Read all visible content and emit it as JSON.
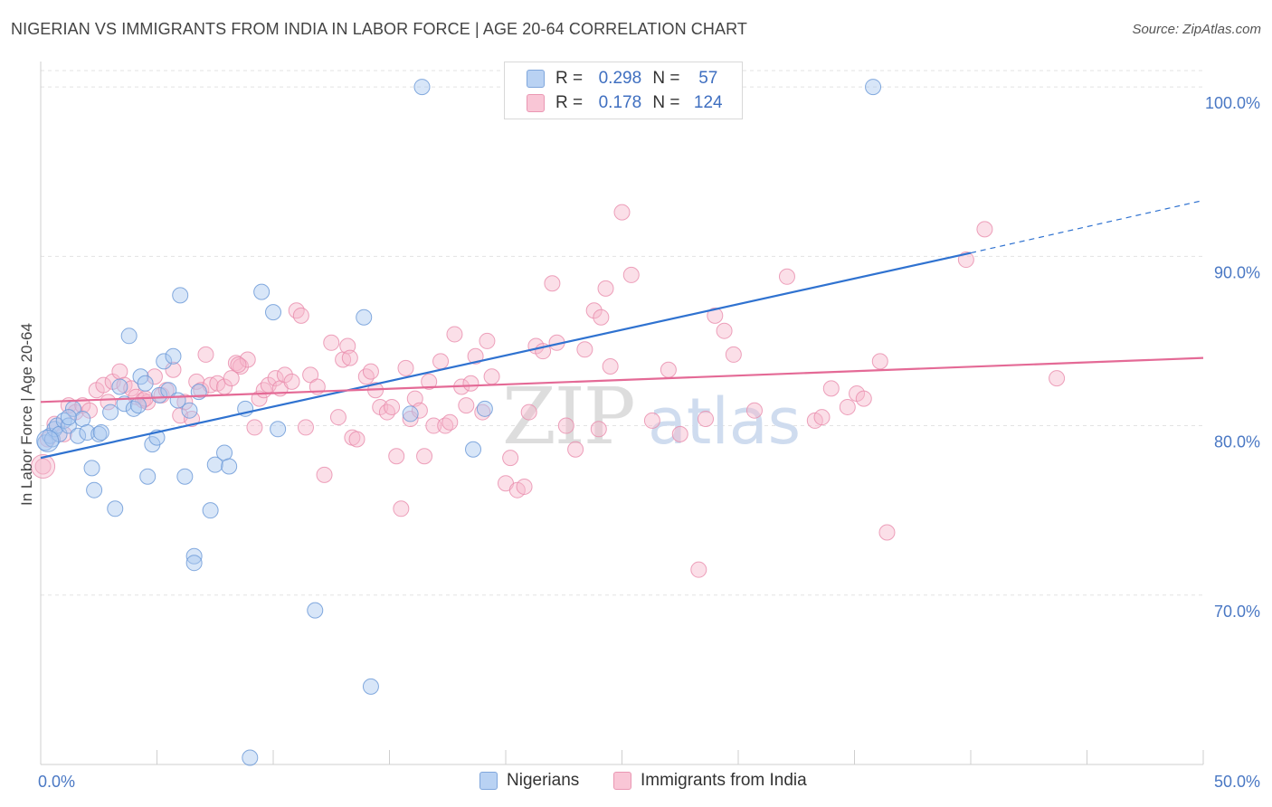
{
  "header": {
    "title": "NIGERIAN VS IMMIGRANTS FROM INDIA IN LABOR FORCE | AGE 20-64 CORRELATION CHART",
    "source": "Source: ZipAtlas.com"
  },
  "watermark": "ZIPatlas",
  "colors": {
    "blue_fill": "#a9c8f0",
    "blue_stroke": "#6e9bd8",
    "blue_line": "#2f72d0",
    "pink_fill": "#f7b9cd",
    "pink_stroke": "#e98bab",
    "pink_line": "#e46a96",
    "tick_text": "#4a78c4"
  },
  "legend": {
    "rows": [
      {
        "r_label": "R =",
        "r_value": "0.298",
        "n_label": "N =",
        "n_value": "57"
      },
      {
        "r_label": "R =",
        "r_value": "0.178",
        "n_label": "N =",
        "n_value": "124"
      }
    ]
  },
  "bottom_legend": {
    "items": [
      {
        "label": "Nigerians"
      },
      {
        "label": "Immigrants from India"
      }
    ]
  },
  "chart_data": {
    "type": "scatter",
    "title": "NIGERIAN VS IMMIGRANTS FROM INDIA IN LABOR FORCE | AGE 20-64 CORRELATION CHART",
    "xlabel": "",
    "ylabel": "In Labor Force | Age 20-64",
    "xlim": [
      0,
      50
    ],
    "ylim": [
      60,
      101.5
    ],
    "x_tick_labels": [
      "0.0%",
      "50.0%"
    ],
    "y_ticks": [
      70,
      80,
      90,
      100
    ],
    "y_tick_labels": [
      "70.0%",
      "80.0%",
      "90.0%",
      "100.0%"
    ],
    "grid": true,
    "legend_position": "top-center",
    "series": [
      {
        "name": "Nigerians",
        "R": 0.298,
        "N": 57,
        "trend": {
          "x0": 0,
          "y0": 78.1,
          "x1": 40,
          "y1": 90.2,
          "dashed_to_x": 50,
          "dashed_to_y": 93.3
        },
        "points": [
          [
            0.2,
            79.0
          ],
          [
            0.4,
            79.4
          ],
          [
            0.5,
            79.2
          ],
          [
            0.6,
            79.8
          ],
          [
            0.7,
            80.0
          ],
          [
            0.8,
            79.5
          ],
          [
            1.0,
            80.3
          ],
          [
            1.2,
            80.0
          ],
          [
            1.4,
            81.0
          ],
          [
            1.6,
            79.4
          ],
          [
            1.8,
            80.4
          ],
          [
            2.0,
            79.6
          ],
          [
            2.2,
            77.5
          ],
          [
            2.3,
            76.2
          ],
          [
            2.5,
            79.5
          ],
          [
            2.6,
            79.6
          ],
          [
            3.0,
            80.8
          ],
          [
            3.2,
            75.1
          ],
          [
            3.4,
            82.3
          ],
          [
            3.6,
            81.3
          ],
          [
            3.8,
            85.3
          ],
          [
            4.0,
            81.0
          ],
          [
            4.2,
            81.2
          ],
          [
            4.3,
            82.9
          ],
          [
            4.5,
            82.5
          ],
          [
            4.6,
            77.0
          ],
          [
            4.8,
            78.9
          ],
          [
            5.0,
            79.3
          ],
          [
            5.1,
            81.8
          ],
          [
            5.3,
            83.8
          ],
          [
            5.5,
            82.1
          ],
          [
            5.7,
            84.1
          ],
          [
            5.9,
            81.5
          ],
          [
            6.0,
            87.7
          ],
          [
            6.2,
            77.0
          ],
          [
            6.4,
            80.9
          ],
          [
            6.6,
            72.3
          ],
          [
            6.8,
            82.0
          ],
          [
            7.3,
            75.0
          ],
          [
            7.5,
            77.7
          ],
          [
            7.9,
            78.4
          ],
          [
            8.1,
            77.6
          ],
          [
            8.8,
            81.0
          ],
          [
            9.0,
            60.4
          ],
          [
            9.5,
            87.9
          ],
          [
            10.0,
            86.7
          ],
          [
            10.2,
            79.8
          ],
          [
            11.8,
            69.1
          ],
          [
            13.9,
            86.4
          ],
          [
            14.2,
            64.6
          ],
          [
            15.9,
            80.7
          ],
          [
            16.4,
            100.0
          ],
          [
            18.6,
            78.6
          ],
          [
            19.1,
            81.0
          ],
          [
            35.8,
            100.0
          ],
          [
            1.2,
            80.5
          ],
          [
            6.6,
            71.9
          ]
        ]
      },
      {
        "name": "Immigrants from India",
        "R": 0.178,
        "N": 124,
        "trend": {
          "x0": 0,
          "y0": 81.4,
          "x1": 50,
          "y1": 84.0
        },
        "points": [
          [
            0.1,
            77.6
          ],
          [
            0.3,
            79.2
          ],
          [
            0.6,
            80.1
          ],
          [
            1.0,
            79.5
          ],
          [
            1.2,
            81.2
          ],
          [
            1.5,
            80.8
          ],
          [
            1.8,
            81.2
          ],
          [
            2.1,
            80.9
          ],
          [
            2.4,
            82.1
          ],
          [
            2.7,
            82.4
          ],
          [
            2.9,
            81.4
          ],
          [
            3.1,
            82.6
          ],
          [
            3.4,
            83.2
          ],
          [
            3.6,
            82.4
          ],
          [
            3.9,
            82.2
          ],
          [
            4.1,
            81.7
          ],
          [
            4.4,
            81.5
          ],
          [
            4.6,
            81.4
          ],
          [
            4.9,
            82.9
          ],
          [
            5.2,
            81.8
          ],
          [
            5.4,
            82.1
          ],
          [
            5.7,
            83.3
          ],
          [
            6.0,
            80.6
          ],
          [
            6.2,
            81.4
          ],
          [
            6.5,
            80.4
          ],
          [
            6.7,
            82.6
          ],
          [
            6.9,
            82.1
          ],
          [
            7.1,
            84.2
          ],
          [
            7.3,
            82.4
          ],
          [
            7.6,
            82.5
          ],
          [
            7.9,
            82.3
          ],
          [
            8.2,
            82.8
          ],
          [
            8.4,
            83.7
          ],
          [
            8.6,
            83.5
          ],
          [
            8.9,
            83.9
          ],
          [
            9.2,
            79.9
          ],
          [
            9.4,
            81.6
          ],
          [
            9.6,
            82.1
          ],
          [
            9.8,
            82.4
          ],
          [
            10.1,
            82.8
          ],
          [
            10.3,
            82.2
          ],
          [
            10.5,
            83.0
          ],
          [
            10.8,
            82.6
          ],
          [
            11.0,
            86.8
          ],
          [
            11.2,
            86.5
          ],
          [
            11.4,
            79.9
          ],
          [
            11.6,
            83.0
          ],
          [
            11.9,
            82.3
          ],
          [
            12.2,
            77.1
          ],
          [
            12.5,
            84.9
          ],
          [
            12.8,
            80.5
          ],
          [
            13.0,
            83.9
          ],
          [
            13.2,
            84.7
          ],
          [
            13.4,
            79.3
          ],
          [
            13.6,
            79.2
          ],
          [
            14.0,
            82.9
          ],
          [
            14.2,
            83.2
          ],
          [
            14.4,
            82.1
          ],
          [
            14.6,
            81.1
          ],
          [
            14.9,
            80.8
          ],
          [
            15.1,
            81.1
          ],
          [
            15.3,
            78.2
          ],
          [
            15.5,
            75.1
          ],
          [
            15.7,
            83.4
          ],
          [
            15.9,
            80.4
          ],
          [
            16.1,
            81.6
          ],
          [
            16.3,
            80.9
          ],
          [
            16.5,
            78.2
          ],
          [
            16.7,
            82.6
          ],
          [
            16.9,
            80.0
          ],
          [
            17.2,
            83.8
          ],
          [
            17.4,
            80.0
          ],
          [
            17.6,
            80.2
          ],
          [
            17.8,
            85.4
          ],
          [
            18.1,
            82.3
          ],
          [
            18.3,
            81.2
          ],
          [
            18.5,
            82.5
          ],
          [
            18.7,
            84.1
          ],
          [
            19.0,
            80.8
          ],
          [
            19.2,
            85.0
          ],
          [
            19.4,
            82.9
          ],
          [
            20.0,
            76.6
          ],
          [
            20.2,
            78.1
          ],
          [
            20.5,
            76.2
          ],
          [
            20.8,
            76.4
          ],
          [
            21.0,
            80.8
          ],
          [
            21.3,
            84.7
          ],
          [
            21.6,
            84.4
          ],
          [
            22.0,
            88.4
          ],
          [
            22.2,
            84.9
          ],
          [
            22.6,
            80.0
          ],
          [
            23.0,
            78.6
          ],
          [
            23.4,
            84.5
          ],
          [
            23.8,
            86.8
          ],
          [
            24.1,
            86.4
          ],
          [
            24.3,
            88.1
          ],
          [
            24.5,
            83.5
          ],
          [
            25.0,
            92.6
          ],
          [
            25.4,
            88.9
          ],
          [
            26.3,
            80.3
          ],
          [
            27.0,
            83.3
          ],
          [
            27.5,
            79.5
          ],
          [
            28.3,
            71.5
          ],
          [
            28.6,
            80.4
          ],
          [
            29.0,
            86.5
          ],
          [
            29.4,
            85.6
          ],
          [
            29.8,
            84.2
          ],
          [
            30.7,
            80.9
          ],
          [
            32.1,
            88.8
          ],
          [
            33.3,
            80.3
          ],
          [
            33.6,
            80.5
          ],
          [
            34.0,
            82.2
          ],
          [
            34.7,
            81.1
          ],
          [
            35.1,
            81.9
          ],
          [
            35.4,
            81.6
          ],
          [
            36.1,
            83.8
          ],
          [
            36.4,
            73.7
          ],
          [
            39.8,
            89.8
          ],
          [
            40.6,
            91.6
          ],
          [
            43.7,
            82.8
          ],
          [
            8.5,
            83.6
          ],
          [
            13.3,
            84.0
          ],
          [
            4.5,
            81.6
          ],
          [
            24.0,
            79.8
          ]
        ]
      }
    ]
  }
}
